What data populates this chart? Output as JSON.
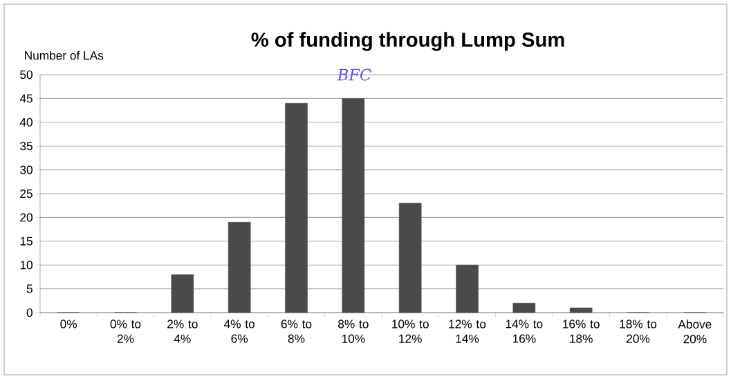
{
  "chart_data": {
    "type": "bar",
    "title": "% of funding through Lump Sum",
    "ylabel": "Number of LAs",
    "categories": [
      "0%",
      "0% to 2%",
      "2% to 4%",
      "4% to 6%",
      "6% to 8%",
      "8% to 10%",
      "10% to 12%",
      "12% to 14%",
      "14% to 16%",
      "16% to 18%",
      "18% to 20%",
      "Above 20%"
    ],
    "values": [
      0,
      0,
      8,
      19,
      44,
      45,
      23,
      10,
      2,
      1,
      0,
      0
    ],
    "color": "#4a4a4a",
    "ylim": [
      0,
      50
    ],
    "yticks": [
      0,
      5,
      10,
      15,
      20,
      25,
      30,
      35,
      40,
      45,
      50
    ],
    "grid": "y",
    "annotations": [
      "BFC"
    ]
  }
}
